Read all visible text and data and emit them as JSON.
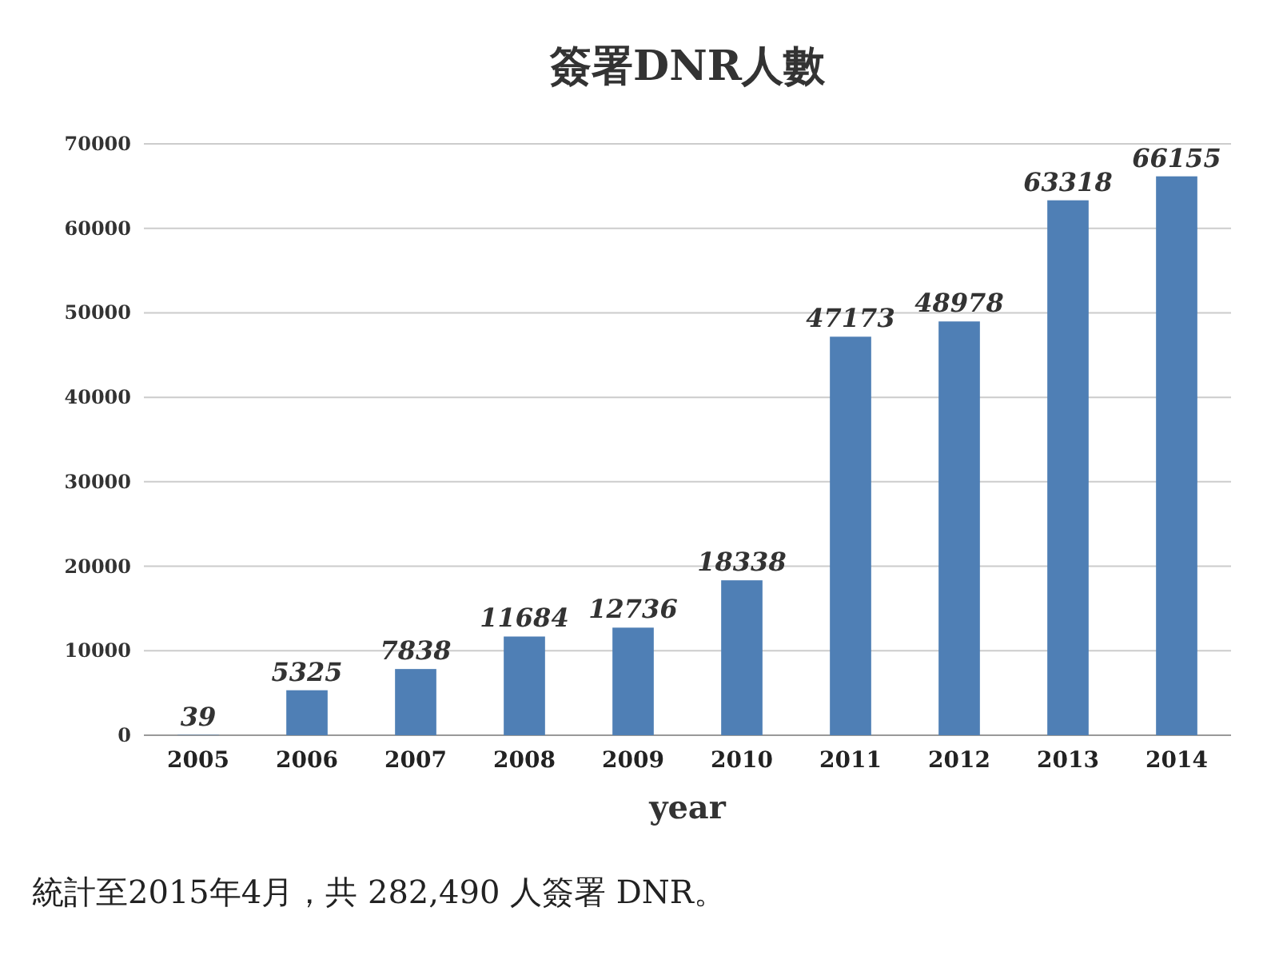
{
  "chart_data": {
    "type": "bar",
    "title": "簽署DNR人數",
    "xlabel": "year",
    "categories": [
      "2005",
      "2006",
      "2007",
      "2008",
      "2009",
      "2010",
      "2011",
      "2012",
      "2013",
      "2014"
    ],
    "values": [
      39,
      5325,
      7838,
      11684,
      12736,
      18338,
      47173,
      48978,
      63318,
      66155
    ],
    "color": "#4f7fb5",
    "ylim": [
      0,
      70000
    ],
    "yticks": [
      0,
      10000,
      20000,
      30000,
      40000,
      50000,
      60000,
      70000
    ],
    "grid": "y",
    "data_labels": true,
    "annotations": [
      "統計至2015年4月，共 282,490 人簽署 DNR。"
    ]
  }
}
